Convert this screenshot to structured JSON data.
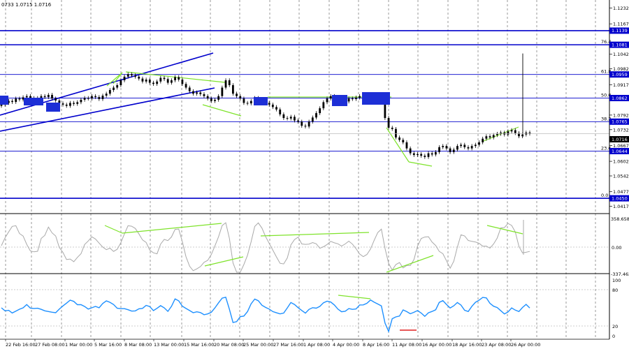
{
  "chart_data": {
    "type": "line",
    "header_text": "0733 1.0715 1.0716",
    "x_tick_labels": [
      "22 Feb 16:00",
      "27 Feb 08:00",
      "1 Mar 00:00",
      "5 Mar 16:00",
      "8 Mar 08:00",
      "13 Mar 00:00",
      "15 Mar 16:00",
      "20 Mar 08:00",
      "25 Mar 00:00",
      "27 Mar 16:00",
      "1 Apr 08:00",
      "4 Apr 00:00",
      "8 Apr 16:00",
      "11 Apr 08:00",
      "16 Apr 00:00",
      "18 Apr 16:00",
      "23 Apr 08:00",
      "26 Apr 00:00"
    ],
    "price_axis_ticks": [
      "1.1232",
      "1.1167",
      "1.1042",
      "1.0982",
      "1.0917",
      "1.0792",
      "1.0732",
      "1.0667",
      "1.0602",
      "1.0542",
      "1.0477",
      "1.0417"
    ],
    "price_range": [
      1.039,
      1.1265
    ],
    "current_price": "1.0716",
    "fib_levels": [
      {
        "label": "100.0",
        "price": 1.1139,
        "tag": "1.1139",
        "show_label": false
      },
      {
        "label": "76.4",
        "price": 1.1081,
        "tag": "1.1081",
        "show_label": true
      },
      {
        "label": "61.8",
        "price": 1.0959,
        "tag": "1.0959",
        "show_label": true
      },
      {
        "label": "50.0",
        "price": 1.0862,
        "tag": "1.0862",
        "show_label": true
      },
      {
        "label": "38.2",
        "price": 1.0765,
        "tag": "1.0765",
        "show_label": true
      },
      {
        "label": "23.6",
        "price": 1.0644,
        "tag": "1.0644",
        "show_label": true
      },
      {
        "label": "0.0",
        "price": 1.045,
        "tag": "1.0450",
        "show_label": true
      }
    ],
    "series": [
      {
        "name": "EUR/USD",
        "closes": [
          1.0835,
          1.0842,
          1.085,
          1.0846,
          1.086,
          1.0856,
          1.0865,
          1.087,
          1.0855,
          1.0862,
          1.0858,
          1.087,
          1.0866,
          1.0875,
          1.086,
          1.0852,
          1.084,
          1.0835,
          1.083,
          1.0842,
          1.0838,
          1.0845,
          1.0855,
          1.0862,
          1.086,
          1.087,
          1.0866,
          1.0858,
          1.0872,
          1.088,
          1.0895,
          1.0905,
          1.0915,
          1.0935,
          1.095,
          1.096,
          1.0955,
          1.095,
          1.0942,
          1.093,
          1.0938,
          1.0925,
          1.092,
          1.093,
          1.0945,
          1.094,
          1.0925,
          1.0935,
          1.0948,
          1.0938,
          1.092,
          1.0905,
          1.089,
          1.088,
          1.0885,
          1.0878,
          1.087,
          1.086,
          1.085,
          1.0855,
          1.087,
          1.0905,
          1.0935,
          1.0915,
          1.088,
          1.087,
          1.086,
          1.0842,
          1.084,
          1.085,
          1.0862,
          1.0858,
          1.0848,
          1.0842,
          1.0835,
          1.0825,
          1.0815,
          1.0795,
          1.078,
          1.0778,
          1.0785,
          1.077,
          1.0765,
          1.0748,
          1.0745,
          1.0765,
          1.0782,
          1.08,
          1.082,
          1.0845,
          1.086,
          1.087,
          1.0865,
          1.0855,
          1.0845,
          1.0848,
          1.086,
          1.0858,
          1.0864,
          1.087,
          1.086,
          1.0862,
          1.0865,
          1.0858,
          1.0862,
          1.086,
          1.078,
          1.074,
          1.0735,
          1.07,
          1.069,
          1.068,
          1.0655,
          1.0635,
          1.0628,
          1.0632,
          1.0625,
          1.062,
          1.0635,
          1.063,
          1.064,
          1.066,
          1.0665,
          1.0655,
          1.064,
          1.065,
          1.0665,
          1.067,
          1.066,
          1.0655,
          1.0665,
          1.067,
          1.068,
          1.0695,
          1.0705,
          1.07,
          1.071,
          1.0715,
          1.072,
          1.0712,
          1.0725,
          1.073,
          1.0718,
          1.0705,
          1.0712,
          1.072,
          1.0716
        ]
      }
    ],
    "indicator1": {
      "top_label": "358.6587",
      "mid_label": "0.00",
      "bottom_label": "-337.462"
    },
    "indicator2": {
      "top_label": "100",
      "levels": [
        "80",
        "20",
        "0"
      ]
    },
    "blue_boxes": 6,
    "grid": true
  }
}
